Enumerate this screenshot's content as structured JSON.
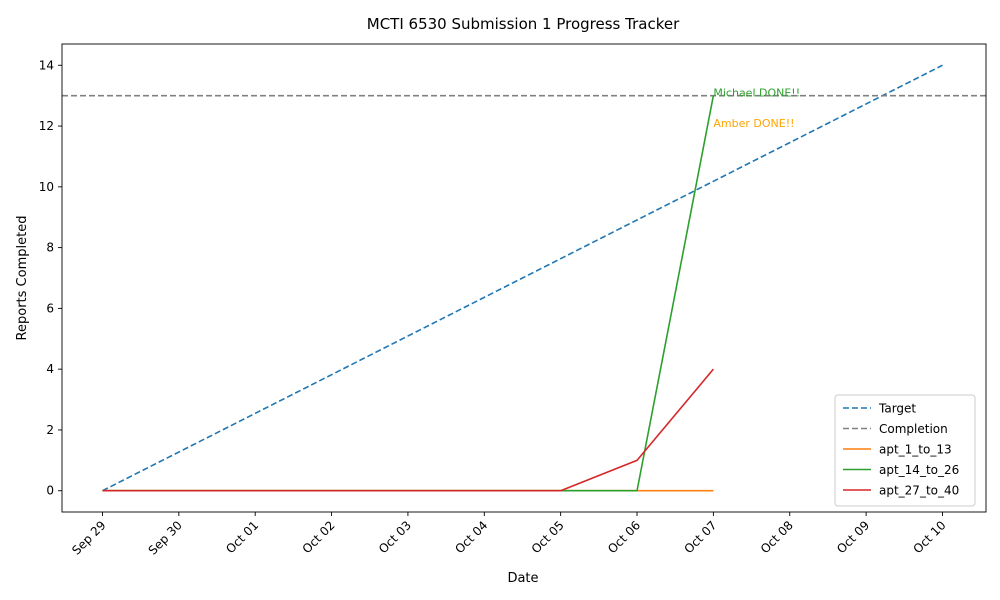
{
  "chart_data": {
    "type": "line",
    "title": "MCTI 6530 Submission 1 Progress Tracker",
    "xlabel": "Date",
    "ylabel": "Reports Completed",
    "x_ticks": [
      "Sep 29",
      "Sep 30",
      "Oct 01",
      "Oct 02",
      "Oct 03",
      "Oct 04",
      "Oct 05",
      "Oct 06",
      "Oct 07",
      "Oct 08",
      "Oct 09",
      "Oct 10"
    ],
    "y_ticks": [
      0,
      2,
      4,
      6,
      8,
      10,
      12,
      14
    ],
    "xlim": [
      "Sep 28.47",
      "Oct 10.57"
    ],
    "ylim": [
      -0.7,
      14.7
    ],
    "grid": false,
    "legend_position": "lower right",
    "series": [
      {
        "name": "Target",
        "style": "dashed",
        "color": "#1f77b4",
        "x": [
          "Sep 29",
          "Oct 10"
        ],
        "y": [
          0,
          14
        ]
      },
      {
        "name": "Completion",
        "style": "dashed-hline",
        "color": "#808080",
        "y_const": 13
      },
      {
        "name": "apt_1_to_13",
        "style": "solid",
        "color": "#ff7f0e",
        "x": [
          "Sep 29",
          "Sep 30",
          "Oct 01",
          "Oct 02",
          "Oct 03",
          "Oct 04",
          "Oct 05",
          "Oct 06",
          "Oct 07"
        ],
        "y": [
          0,
          0,
          0,
          0,
          0,
          0,
          0,
          0,
          0
        ]
      },
      {
        "name": "apt_14_to_26",
        "style": "solid",
        "color": "#2ca02c",
        "x": [
          "Sep 29",
          "Sep 30",
          "Oct 01",
          "Oct 02",
          "Oct 03",
          "Oct 04",
          "Oct 05",
          "Oct 06",
          "Oct 07"
        ],
        "y": [
          0,
          0,
          0,
          0,
          0,
          0,
          0,
          0,
          13
        ]
      },
      {
        "name": "apt_27_to_40",
        "style": "solid",
        "color": "#d62728",
        "x": [
          "Sep 29",
          "Sep 30",
          "Oct 01",
          "Oct 02",
          "Oct 03",
          "Oct 04",
          "Oct 05",
          "Oct 06",
          "Oct 07"
        ],
        "y": [
          0,
          0,
          0,
          0,
          0,
          0,
          0,
          1,
          4
        ]
      }
    ],
    "annotations": [
      {
        "text": "Michael DONE!!",
        "x": "Oct 07",
        "y": 13,
        "color": "#2ca02c"
      },
      {
        "text": "Amber DONE!!",
        "x": "Oct 07",
        "y": 12,
        "color": "#ffa500"
      }
    ]
  }
}
